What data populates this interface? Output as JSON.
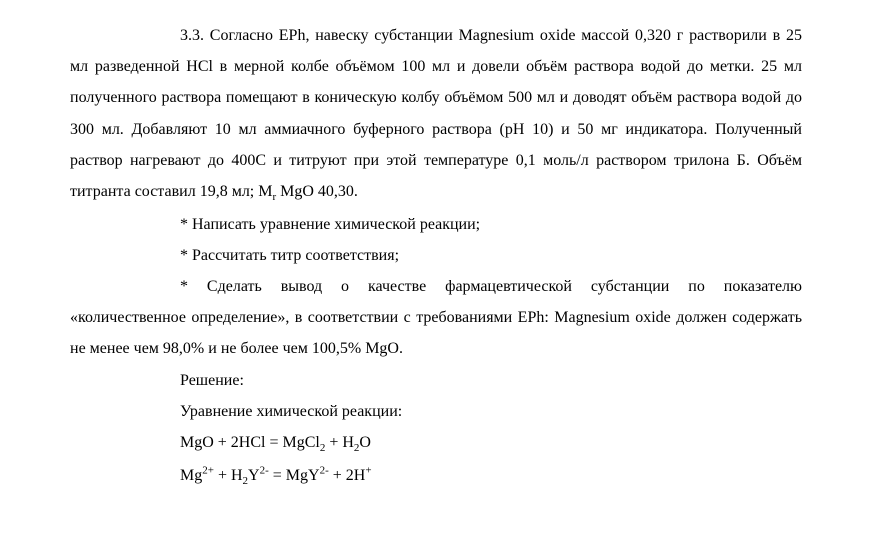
{
  "document": {
    "font_family": "Times New Roman",
    "font_size": 16,
    "line_height": 1.95,
    "text_color": "#000000",
    "background_color": "#ffffff",
    "text_indent": 110,
    "para1": "3.3. Согласно EPh, навеску субстанции Magnesium oxide массой 0,320 г растворили в 25 мл разведенной HCl в мерной колбе объёмом 100 мл и довели объём раствора водой до метки. 25 мл полученного раствора помещают в коническую колбу объёмом 500 мл и доводят объём раствора водой до 300 мл. Добавляют 10 мл аммиачного буферного раствора (pH 10) и 50 мг индикатора. Полученный раствор нагревают до 400С и титруют при этой температуре 0,1 моль/л раствором трилона Б. Объём титранта составил 19,8 мл; M",
    "para1_sub": "r",
    "para1_end": " MgO 40,30.",
    "bullet1": "* Написать уравнение химической реакции;",
    "bullet2": "* Рассчитать титр соответствия;",
    "bullet3": "* Сделать вывод о качестве фармацевтической субстанции по показателю «количественное определение», в соответствии с требованиями EPh: Magnesium oxide должен содержать не менее чем 98,0% и не более чем 100,5% MgO.",
    "solution_label": "Решение:",
    "eq_label": "Уравнение химической реакции:",
    "eq1_p1": "MgO + 2HCl = MgCl",
    "eq1_sub1": "2",
    "eq1_p2": " + H",
    "eq1_sub2": "2",
    "eq1_p3": "O",
    "eq2_p1": "Mg",
    "eq2_sup1": "2+",
    "eq2_p2": " + H",
    "eq2_sub1": "2",
    "eq2_p3": "Y",
    "eq2_sup2": "2-",
    "eq2_p4": " = MgY",
    "eq2_sup3": "2-",
    "eq2_p5": " + 2H",
    "eq2_sup4": "+"
  }
}
